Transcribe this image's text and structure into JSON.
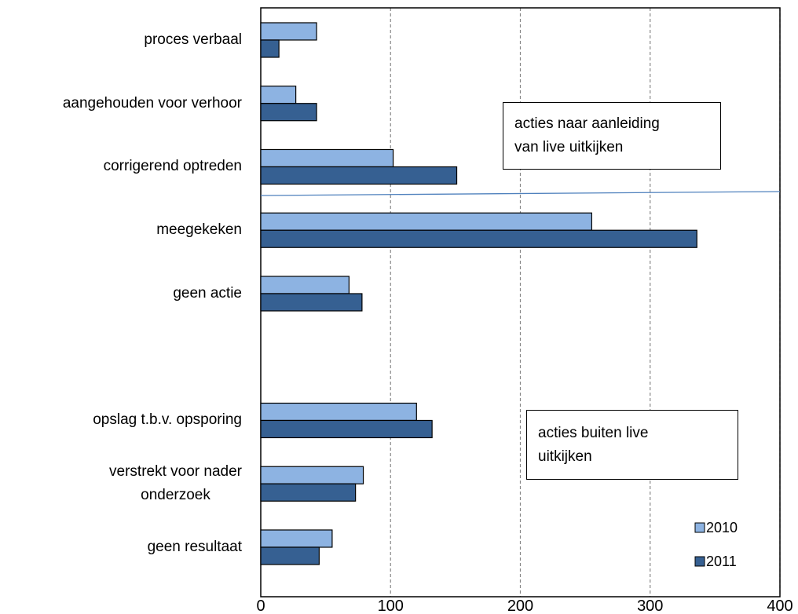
{
  "chart_data": {
    "type": "barh",
    "categories": [
      "proces verbaal",
      "aangehouden voor verhoor",
      "corrigerend optreden",
      "meegekeken",
      "geen actie",
      null,
      "opslag t.b.v.  opsporing",
      "verstrekt voor nader\nonderzoek",
      "geen resultaat"
    ],
    "series": [
      {
        "name": "2010",
        "color": "#8db3e2",
        "values": [
          43,
          27,
          102,
          255,
          68,
          null,
          120,
          79,
          55
        ]
      },
      {
        "name": "2011",
        "color": "#366092",
        "values": [
          14,
          43,
          151,
          336,
          78,
          null,
          132,
          73,
          45
        ]
      }
    ],
    "xlim": [
      0,
      400
    ],
    "xticks": [
      0,
      100,
      200,
      300,
      400
    ],
    "grid": true,
    "legend": "lower right",
    "annotations": [
      "acties naar aanleiding\nvan live uitkijken",
      "acties buiten live\nuitkijken"
    ]
  }
}
